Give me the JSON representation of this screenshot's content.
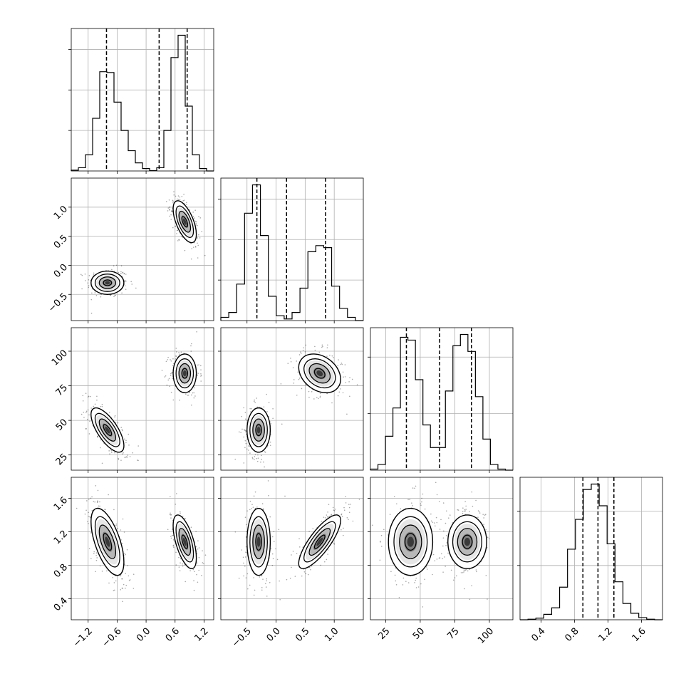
{
  "chart_data": {
    "type": "corner",
    "parameters": [
      {
        "id": "p0",
        "axis_range": [
          -1.55,
          1.4
        ],
        "ticks": [
          -1.2,
          -0.6,
          0.0,
          0.6,
          1.2
        ],
        "tick_labels": [
          "−1.2",
          "−0.6",
          "0.0",
          "0.6",
          "1.2"
        ],
        "quantiles": [
          -0.82,
          0.27,
          0.85
        ],
        "modes": [
          {
            "mean": -0.8,
            "sd": 0.17,
            "weight": 0.5
          },
          {
            "mean": 0.8,
            "sd": 0.12,
            "weight": 0.5
          }
        ],
        "hist_bin_range": [
          -1.55,
          1.4
        ],
        "hist_counts": [
          2,
          8,
          40,
          130,
          245,
          243,
          170,
          100,
          50,
          20,
          6,
          1,
          8,
          100,
          280,
          335,
          160,
          40,
          6,
          0
        ]
      },
      {
        "id": "p1",
        "axis_range": [
          -0.95,
          1.5
        ],
        "ticks": [
          -0.5,
          0.0,
          0.5,
          1.0
        ],
        "tick_labels": [
          "−0.5",
          "0.0",
          "0.5",
          "1.0"
        ],
        "quantiles": [
          -0.33,
          0.18,
          0.85
        ],
        "modes": [
          {
            "mean": -0.3,
            "sd": 0.1,
            "weight": 0.5
          },
          {
            "mean": 0.75,
            "sd": 0.18,
            "weight": 0.5
          }
        ],
        "hist_bin_range": [
          -0.95,
          1.5
        ],
        "hist_counts": [
          8,
          20,
          90,
          265,
          335,
          210,
          60,
          12,
          4,
          20,
          80,
          170,
          185,
          180,
          85,
          30,
          8,
          0
        ]
      },
      {
        "id": "p2",
        "axis_range": [
          14,
          117
        ],
        "ticks": [
          25,
          50,
          75,
          100
        ],
        "tick_labels": [
          "25",
          "50",
          "75",
          "100"
        ],
        "quantiles": [
          40,
          64,
          87
        ],
        "modes": [
          {
            "mean": 43,
            "sd": 8,
            "weight": 0.5
          },
          {
            "mean": 84,
            "sd": 7,
            "weight": 0.5
          }
        ],
        "hist_bin_range": [
          14,
          117
        ],
        "hist_counts": [
          2,
          10,
          60,
          110,
          235,
          230,
          160,
          80,
          40,
          40,
          140,
          220,
          240,
          210,
          130,
          55,
          10,
          2,
          0
        ]
      },
      {
        "id": "p3",
        "axis_range": [
          0.15,
          1.85
        ],
        "ticks": [
          0.4,
          0.8,
          1.2,
          1.6
        ],
        "tick_labels": [
          "0.4",
          "0.8",
          "1.2",
          "1.6"
        ],
        "quantiles": [
          0.9,
          1.08,
          1.27
        ],
        "modes": [
          {
            "mean": 1.08,
            "sd": 0.18,
            "weight": 1.0
          }
        ],
        "hist_bin_range": [
          0.15,
          1.85
        ],
        "hist_counts": [
          0,
          1,
          3,
          10,
          22,
          60,
          130,
          185,
          240,
          250,
          210,
          140,
          70,
          30,
          12,
          4,
          1,
          0
        ]
      }
    ],
    "pairs": [
      {
        "row": 1,
        "col": 0,
        "clusters": [
          {
            "mx": -0.8,
            "my": -0.3,
            "sx": 0.17,
            "sy": 0.1,
            "rho": 0.0
          },
          {
            "mx": 0.8,
            "my": 0.75,
            "sx": 0.12,
            "sy": 0.18,
            "rho": -0.6
          }
        ]
      },
      {
        "row": 2,
        "col": 0,
        "clusters": [
          {
            "mx": -0.8,
            "my": 43,
            "sx": 0.17,
            "sy": 8,
            "rho": -0.7
          },
          {
            "mx": 0.8,
            "my": 84,
            "sx": 0.12,
            "sy": 7,
            "rho": 0.0
          }
        ]
      },
      {
        "row": 2,
        "col": 1,
        "clusters": [
          {
            "mx": -0.3,
            "my": 43,
            "sx": 0.1,
            "sy": 8,
            "rho": 0.0
          },
          {
            "mx": 0.75,
            "my": 84,
            "sx": 0.18,
            "sy": 7,
            "rho": -0.3
          }
        ]
      },
      {
        "row": 3,
        "col": 0,
        "clusters": [
          {
            "mx": -0.8,
            "my": 1.08,
            "sx": 0.17,
            "sy": 0.2,
            "rho": -0.6
          },
          {
            "mx": 0.8,
            "my": 1.08,
            "sx": 0.12,
            "sy": 0.16,
            "rho": -0.6
          }
        ]
      },
      {
        "row": 3,
        "col": 1,
        "clusters": [
          {
            "mx": -0.3,
            "my": 1.08,
            "sx": 0.1,
            "sy": 0.2,
            "rho": 0.0
          },
          {
            "mx": 0.75,
            "my": 1.08,
            "sx": 0.18,
            "sy": 0.16,
            "rho": 0.8
          }
        ]
      },
      {
        "row": 3,
        "col": 2,
        "clusters": [
          {
            "mx": 43,
            "my": 1.08,
            "sx": 8,
            "sy": 0.2,
            "rho": 0.0
          },
          {
            "mx": 84,
            "my": 1.08,
            "sx": 7,
            "sy": 0.16,
            "rho": 0.0
          }
        ]
      }
    ],
    "contour_levels_sigma": [
      0.5,
      1.0,
      1.5,
      2.0
    ],
    "grid": true,
    "title": "",
    "legend": "none"
  }
}
